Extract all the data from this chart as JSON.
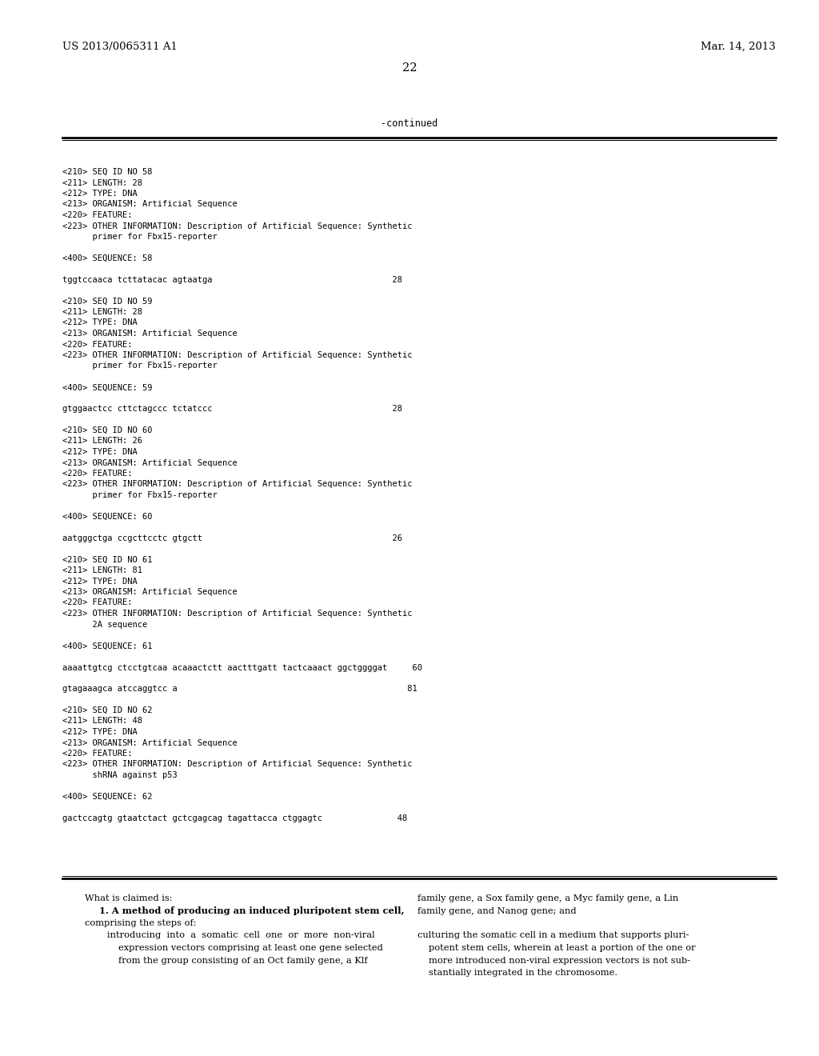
{
  "bg_color": "#ffffff",
  "header_left": "US 2013/0065311 A1",
  "header_right": "Mar. 14, 2013",
  "page_number": "22",
  "continued_text": "-continued",
  "monospace_font_size": 7.5,
  "claims_font_size": 8.2,
  "header_font_size": 9.5,
  "page_num_font_size": 10.5,
  "seq_blocks": [
    {
      "lines": [
        "<210> SEQ ID NO 58",
        "<211> LENGTH: 28",
        "<212> TYPE: DNA",
        "<213> ORGANISM: Artificial Sequence",
        "<220> FEATURE:",
        "<223> OTHER INFORMATION: Description of Artificial Sequence: Synthetic",
        "      primer for Fbx15-reporter",
        "",
        "<400> SEQUENCE: 58",
        "",
        "tggtccaaca tcttatacac agtaatga                                    28"
      ]
    },
    {
      "lines": [
        "<210> SEQ ID NO 59",
        "<211> LENGTH: 28",
        "<212> TYPE: DNA",
        "<213> ORGANISM: Artificial Sequence",
        "<220> FEATURE:",
        "<223> OTHER INFORMATION: Description of Artificial Sequence: Synthetic",
        "      primer for Fbx15-reporter",
        "",
        "<400> SEQUENCE: 59",
        "",
        "gtggaactcc cttctagccc tctatccc                                    28"
      ]
    },
    {
      "lines": [
        "<210> SEQ ID NO 60",
        "<211> LENGTH: 26",
        "<212> TYPE: DNA",
        "<213> ORGANISM: Artificial Sequence",
        "<220> FEATURE:",
        "<223> OTHER INFORMATION: Description of Artificial Sequence: Synthetic",
        "      primer for Fbx15-reporter",
        "",
        "<400> SEQUENCE: 60",
        "",
        "aatgggctga ccgcttcctc gtgctt                                      26"
      ]
    },
    {
      "lines": [
        "<210> SEQ ID NO 61",
        "<211> LENGTH: 81",
        "<212> TYPE: DNA",
        "<213> ORGANISM: Artificial Sequence",
        "<220> FEATURE:",
        "<223> OTHER INFORMATION: Description of Artificial Sequence: Synthetic",
        "      2A sequence",
        "",
        "<400> SEQUENCE: 61",
        "",
        "aaaattgtcg ctcctgtcaa acaaactctt aactttgatt tactcaaact ggctggggat     60",
        "",
        "gtagaaagca atccaggtcc a                                              81"
      ]
    },
    {
      "lines": [
        "<210> SEQ ID NO 62",
        "<211> LENGTH: 48",
        "<212> TYPE: DNA",
        "<213> ORGANISM: Artificial Sequence",
        "<220> FEATURE:",
        "<223> OTHER INFORMATION: Description of Artificial Sequence: Synthetic",
        "      shRNA against p53",
        "",
        "<400> SEQUENCE: 62",
        "",
        "gactccagtg gtaatctact gctcgagcag tagattacca ctggagtc               48"
      ]
    }
  ],
  "left_claims_lines": [
    {
      "text": "What is claimed is:",
      "indent": 28,
      "serif": true
    },
    {
      "text": "1. A method of producing an induced pluripotent stem cell,",
      "indent": 46,
      "serif": true,
      "bold": true
    },
    {
      "text": "comprising the steps of:",
      "indent": 28,
      "serif": true
    },
    {
      "text": "introducing  into  a  somatic  cell  one  or  more  non-viral",
      "indent": 56,
      "serif": true
    },
    {
      "text": "expression vectors comprising at least one gene selected",
      "indent": 70,
      "serif": true
    },
    {
      "text": "from the group consisting of an Oct family gene, a Klf",
      "indent": 70,
      "serif": true
    }
  ],
  "right_claims_lines": [
    {
      "text": "family gene, a Sox family gene, a Myc family gene, a Lin",
      "indent": 0
    },
    {
      "text": "family gene, and Nanog gene; and",
      "indent": 0
    },
    {
      "text": "",
      "indent": 0
    },
    {
      "text": "culturing the somatic cell in a medium that supports pluri-",
      "indent": 0
    },
    {
      "text": "potent stem cells, wherein at least a portion of the one or",
      "indent": 14
    },
    {
      "text": "more introduced non-viral expression vectors is not sub-",
      "indent": 14
    },
    {
      "text": "stantially integrated in the chromosome.",
      "indent": 14
    }
  ]
}
